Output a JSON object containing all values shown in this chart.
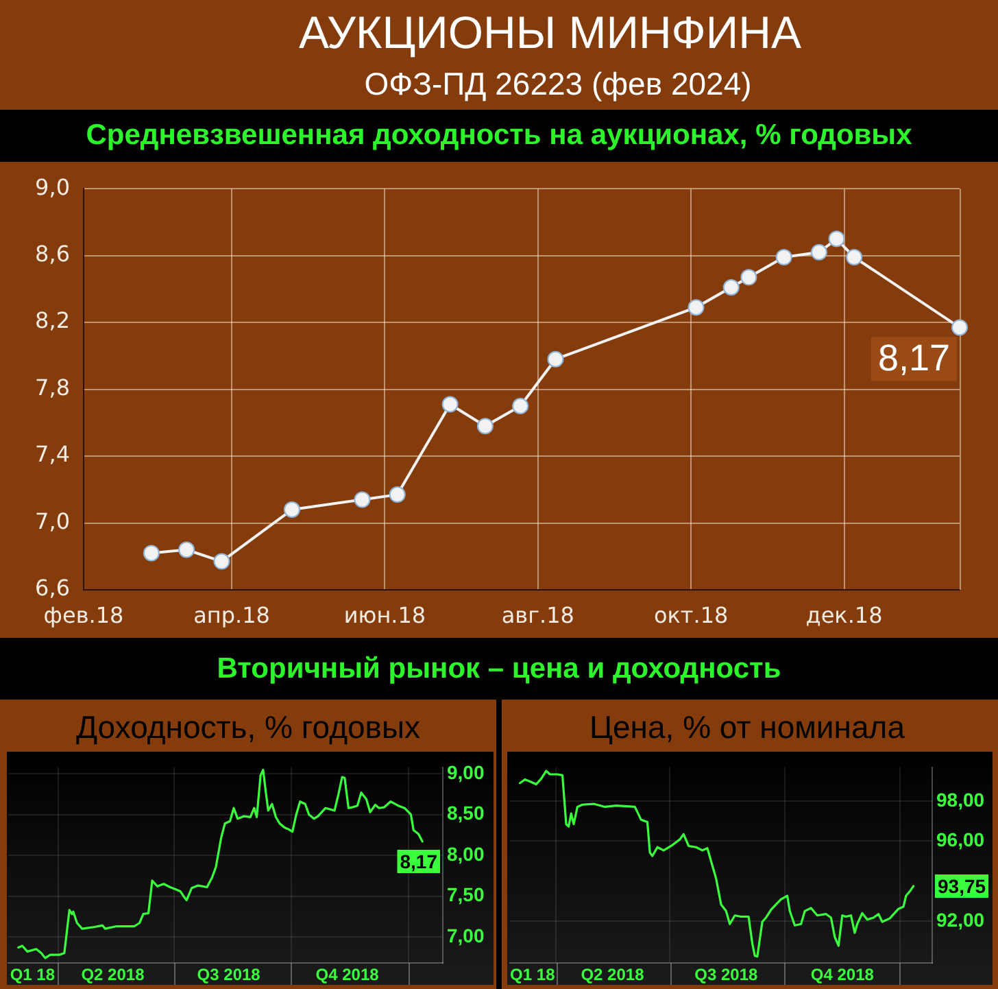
{
  "chart_data": [
    {
      "type": "line",
      "title": "АУКЦИОНЫ МИНФИНА",
      "subtitle": "ОФЗ-ПД 26223 (фев 2024)",
      "annotations": [
        "Средневзвешенная доходность на аукционах, % годовых"
      ],
      "x": [
        "2018-02-28",
        "2018-03-14",
        "2018-03-28",
        "2018-04-25",
        "2018-05-23",
        "2018-06-06",
        "2018-06-27",
        "2018-07-11",
        "2018-07-25",
        "2018-08-08",
        "2018-10-03",
        "2018-10-17",
        "2018-10-24",
        "2018-11-07",
        "2018-11-21",
        "2018-11-28",
        "2018-12-05",
        "2019-01-16"
      ],
      "values": [
        6.82,
        6.84,
        6.77,
        7.08,
        7.14,
        7.17,
        7.71,
        7.58,
        7.7,
        7.98,
        8.29,
        8.41,
        8.47,
        8.59,
        8.62,
        8.7,
        8.59,
        8.17
      ],
      "color": "#f2f2f2",
      "value_labels": [
        null,
        null,
        null,
        null,
        null,
        null,
        null,
        null,
        null,
        null,
        null,
        null,
        null,
        null,
        null,
        null,
        null,
        "8,17"
      ],
      "xlim": [
        "2018-02-01",
        "2019-01-16"
      ],
      "xticks": [
        {
          "value": "2018-02-01",
          "label": "фев.18"
        },
        {
          "value": "2018-04-01",
          "label": "апр.18"
        },
        {
          "value": "2018-06-01",
          "label": "июн.18"
        },
        {
          "value": "2018-08-01",
          "label": "авг.18"
        },
        {
          "value": "2018-10-01",
          "label": "окт.18"
        },
        {
          "value": "2018-12-01",
          "label": "дек.18"
        }
      ],
      "ylim": [
        6.6,
        9.0
      ],
      "yticks": [
        {
          "value": 6.6,
          "label": "6,6"
        },
        {
          "value": 7.0,
          "label": "7,0"
        },
        {
          "value": 7.4,
          "label": "7,4"
        },
        {
          "value": 7.8,
          "label": "7,8"
        },
        {
          "value": 8.2,
          "label": "8,2"
        },
        {
          "value": 8.6,
          "label": "8,6"
        },
        {
          "value": 9.0,
          "label": "9,0"
        }
      ],
      "grid": true,
      "marker": "circle"
    },
    {
      "type": "line",
      "title": "Доходность, % годовых",
      "annotations": [
        "Вторичный рынок – цена и доходность"
      ],
      "x": [
        "2018-03-01",
        "2018-03-04",
        "2018-03-08",
        "2018-03-15",
        "2018-03-19",
        "2018-03-22",
        "2018-03-26",
        "2018-04-02",
        "2018-04-06",
        "2018-04-10",
        "2018-04-12",
        "2018-04-13",
        "2018-04-16",
        "2018-04-20",
        "2018-04-29",
        "2018-05-06",
        "2018-05-08",
        "2018-05-17",
        "2018-05-31",
        "2018-06-04",
        "2018-06-07",
        "2018-06-11",
        "2018-06-14",
        "2018-06-18",
        "2018-06-23",
        "2018-06-28",
        "2018-07-06",
        "2018-07-09",
        "2018-07-11",
        "2018-07-15",
        "2018-07-20",
        "2018-07-27",
        "2018-07-31",
        "2018-08-03",
        "2018-08-07",
        "2018-08-10",
        "2018-08-14",
        "2018-08-17",
        "2018-08-20",
        "2018-08-25",
        "2018-08-30",
        "2018-09-02",
        "2018-09-04",
        "2018-09-07",
        "2018-09-09",
        "2018-09-11",
        "2018-09-13",
        "2018-09-16",
        "2018-09-19",
        "2018-09-22",
        "2018-09-26",
        "2018-09-29",
        "2018-10-02",
        "2018-10-05",
        "2018-10-08",
        "2018-10-12",
        "2018-10-15",
        "2018-10-19",
        "2018-10-22",
        "2018-10-28",
        "2018-11-04",
        "2018-11-07",
        "2018-11-10",
        "2018-11-12",
        "2018-11-15",
        "2018-11-18",
        "2018-11-22",
        "2018-11-25",
        "2018-11-29",
        "2018-12-02",
        "2018-12-06",
        "2018-12-09",
        "2018-12-13",
        "2018-12-18",
        "2018-12-24",
        "2018-12-29",
        "2019-01-03",
        "2019-01-05",
        "2019-01-09",
        "2019-01-12"
      ],
      "values": [
        6.87,
        6.89,
        6.82,
        6.85,
        6.8,
        6.74,
        6.78,
        6.78,
        6.8,
        7.33,
        7.28,
        7.31,
        7.17,
        7.1,
        7.12,
        7.14,
        7.1,
        7.13,
        7.13,
        7.17,
        7.28,
        7.29,
        7.69,
        7.62,
        7.65,
        7.61,
        7.56,
        7.49,
        7.45,
        7.6,
        7.63,
        7.61,
        7.73,
        7.86,
        8.21,
        8.39,
        8.42,
        8.58,
        8.45,
        8.48,
        8.47,
        8.58,
        8.47,
        8.98,
        9.05,
        8.79,
        8.55,
        8.63,
        8.47,
        8.39,
        8.34,
        8.32,
        8.29,
        8.5,
        8.66,
        8.63,
        8.5,
        8.45,
        8.48,
        8.58,
        8.55,
        8.74,
        8.96,
        8.95,
        8.58,
        8.59,
        8.61,
        8.77,
        8.69,
        8.53,
        8.62,
        8.58,
        8.59,
        8.66,
        8.61,
        8.58,
        8.5,
        8.31,
        8.26,
        8.17
      ],
      "color": "#39ff3c",
      "value_labels": [
        null,
        null,
        null,
        null,
        null,
        null,
        null,
        null,
        null,
        null,
        null,
        null,
        null,
        null,
        null,
        null,
        null,
        null,
        null,
        null,
        null,
        null,
        null,
        null,
        null,
        null,
        null,
        null,
        null,
        null,
        null,
        null,
        null,
        null,
        null,
        null,
        null,
        null,
        null,
        null,
        null,
        null,
        null,
        null,
        null,
        null,
        null,
        null,
        null,
        null,
        null,
        null,
        null,
        null,
        null,
        null,
        null,
        null,
        null,
        null,
        null,
        null,
        null,
        null,
        null,
        null,
        null,
        null,
        null,
        null,
        null,
        null,
        null,
        null,
        null,
        null,
        null,
        null,
        null,
        "8,17"
      ],
      "xlim": [
        "2018-02-21",
        "2019-01-28"
      ],
      "xticks": [
        {
          "value": "2018-03-12",
          "label": "Q1 18"
        },
        {
          "value": "2018-04-01",
          "label": null
        },
        {
          "value": "2018-05-14",
          "label": "Q2 2018"
        },
        {
          "value": "2018-07-01",
          "label": null
        },
        {
          "value": "2018-08-13",
          "label": "Q3 2018"
        },
        {
          "value": "2018-10-01",
          "label": null
        },
        {
          "value": "2018-11-14",
          "label": "Q4 2018"
        },
        {
          "value": "2019-01-01",
          "label": null
        }
      ],
      "ylim": [
        6.68,
        9.08
      ],
      "yticks": [
        {
          "value": 7.0,
          "label": "7,00"
        },
        {
          "value": 7.5,
          "label": "7,50"
        },
        {
          "value": 8.0,
          "label": "8,00"
        },
        {
          "value": 8.5,
          "label": "8,50"
        },
        {
          "value": 9.0,
          "label": "9,00"
        }
      ],
      "grid": true
    },
    {
      "type": "line",
      "title": "Цена, % от номинала",
      "x": [
        "2018-03-03",
        "2018-03-07",
        "2018-03-12",
        "2018-03-16",
        "2018-03-20",
        "2018-03-24",
        "2018-03-27",
        "2018-04-02",
        "2018-04-06",
        "2018-04-09",
        "2018-04-11",
        "2018-04-13",
        "2018-04-15",
        "2018-04-18",
        "2018-04-22",
        "2018-05-01",
        "2018-05-10",
        "2018-05-19",
        "2018-06-03",
        "2018-06-08",
        "2018-06-13",
        "2018-06-15",
        "2018-06-17",
        "2018-06-21",
        "2018-06-26",
        "2018-07-02",
        "2018-07-09",
        "2018-07-12",
        "2018-07-16",
        "2018-07-22",
        "2018-07-27",
        "2018-07-31",
        "2018-08-04",
        "2018-08-07",
        "2018-08-11",
        "2018-08-15",
        "2018-08-18",
        "2018-08-22",
        "2018-08-27",
        "2018-09-02",
        "2018-09-05",
        "2018-09-07",
        "2018-09-09",
        "2018-09-13",
        "2018-09-16",
        "2018-09-20",
        "2018-09-24",
        "2018-09-28",
        "2018-10-03",
        "2018-10-05",
        "2018-10-09",
        "2018-10-14",
        "2018-10-17",
        "2018-10-22",
        "2018-10-27",
        "2018-11-03",
        "2018-11-07",
        "2018-11-10",
        "2018-11-13",
        "2018-11-16",
        "2018-11-19",
        "2018-11-23",
        "2018-11-26",
        "2018-11-28",
        "2018-12-02",
        "2018-12-06",
        "2018-12-11",
        "2018-12-15",
        "2018-12-18",
        "2018-12-24",
        "2018-12-31",
        "2019-01-04",
        "2019-01-06",
        "2019-01-09",
        "2019-01-12"
      ],
      "values": [
        98.91,
        99.09,
        98.96,
        98.85,
        99.13,
        99.52,
        99.35,
        99.35,
        99.3,
        96.85,
        96.74,
        97.39,
        96.85,
        97.72,
        97.83,
        97.87,
        97.72,
        97.78,
        97.72,
        97.07,
        96.96,
        95.43,
        95.26,
        95.7,
        95.54,
        95.76,
        96.09,
        96.35,
        95.76,
        95.7,
        95.54,
        95.65,
        94.78,
        94.13,
        92.83,
        92.5,
        91.85,
        92.28,
        92.22,
        92.22,
        90.87,
        90.26,
        90.22,
        91.96,
        92.17,
        92.57,
        92.83,
        93.09,
        93.26,
        92.5,
        91.78,
        91.85,
        92.5,
        92.65,
        92.28,
        92.35,
        92.17,
        91.2,
        90.76,
        92.28,
        92.22,
        92.28,
        91.41,
        91.85,
        92.39,
        92.07,
        92.17,
        92.35,
        91.96,
        92.13,
        92.61,
        92.72,
        93.26,
        93.48,
        93.75
      ],
      "color": "#39ff3c",
      "value_labels": [
        null,
        null,
        null,
        null,
        null,
        null,
        null,
        null,
        null,
        null,
        null,
        null,
        null,
        null,
        null,
        null,
        null,
        null,
        null,
        null,
        null,
        null,
        null,
        null,
        null,
        null,
        null,
        null,
        null,
        null,
        null,
        null,
        null,
        null,
        null,
        null,
        null,
        null,
        null,
        null,
        null,
        null,
        null,
        null,
        null,
        null,
        null,
        null,
        null,
        null,
        null,
        null,
        null,
        null,
        null,
        null,
        null,
        null,
        null,
        null,
        null,
        null,
        null,
        null,
        null,
        null,
        null,
        null,
        null,
        null,
        null,
        null,
        null,
        null,
        "93,75"
      ],
      "xlim": [
        "2018-02-23",
        "2019-01-27"
      ],
      "xticks": [
        {
          "value": "2018-03-13",
          "label": "Q1 18"
        },
        {
          "value": "2018-04-01",
          "label": null
        },
        {
          "value": "2018-05-16",
          "label": "Q2 2018"
        },
        {
          "value": "2018-07-01",
          "label": null
        },
        {
          "value": "2018-08-15",
          "label": "Q3 2018"
        },
        {
          "value": "2018-10-01",
          "label": null
        },
        {
          "value": "2018-11-16",
          "label": "Q4 2018"
        },
        {
          "value": "2019-01-01",
          "label": null
        }
      ],
      "ylim": [
        89.9,
        99.7
      ],
      "yticks": [
        {
          "value": 92,
          "label": "92,00"
        },
        {
          "value": 96,
          "label": "96,00"
        },
        {
          "value": 98,
          "label": "98,00"
        }
      ],
      "grid": true
    }
  ]
}
